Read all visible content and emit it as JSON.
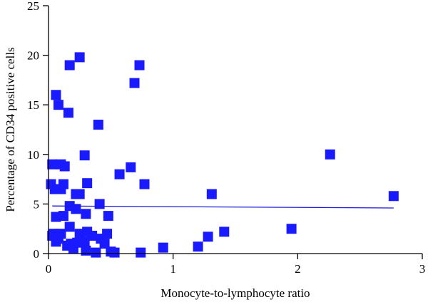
{
  "chart_data": {
    "type": "scatter",
    "xlabel": "Monocyte-to-lymphocyte ratio",
    "ylabel": "Percentage of CD34 positive cells",
    "xlim": [
      0,
      3
    ],
    "ylim": [
      0,
      25
    ],
    "x_ticks": [
      0,
      1,
      2,
      3
    ],
    "y_ticks": [
      0,
      5,
      10,
      15,
      20,
      25
    ],
    "grid": false,
    "legend": "none",
    "marker_color": "#1a1aff",
    "line_color": "#1a1adc",
    "trendline": {
      "x": [
        0.03,
        2.77
      ],
      "y": [
        4.8,
        4.6
      ]
    },
    "series": [
      {
        "x": [
          0.06,
          0.08,
          0.16,
          0.25,
          0.17,
          0.4,
          0.69,
          0.73,
          0.03,
          0.1,
          0.13,
          0.29,
          0.57,
          0.66,
          2.26,
          0.02,
          0.05,
          0.12,
          0.1,
          0.22,
          0.31,
          0.25,
          0.77,
          1.31,
          2.77,
          0.17,
          0.22,
          0.41,
          0.06,
          0.12,
          0.3,
          0.48,
          0.04,
          0.1,
          0.17,
          0.25,
          0.31,
          0.42,
          0.47,
          0.06,
          0.18,
          0.23,
          0.35,
          0.29,
          0.03,
          0.08,
          0.15,
          0.2,
          0.3,
          0.45,
          0.5,
          0.53,
          0.38,
          0.74,
          0.92,
          1.2,
          1.28,
          1.41,
          1.95
        ],
        "y": [
          16.0,
          15.0,
          14.2,
          19.8,
          19.0,
          13.0,
          17.2,
          19.0,
          9.0,
          9.0,
          8.8,
          9.9,
          8.0,
          8.7,
          10.0,
          7.0,
          6.5,
          7.0,
          6.5,
          6.0,
          7.1,
          6.0,
          7.0,
          6.0,
          5.8,
          4.8,
          4.5,
          5.0,
          3.7,
          3.8,
          4.0,
          3.8,
          2.0,
          2.0,
          2.7,
          2.0,
          2.2,
          1.5,
          2.0,
          1.2,
          1.0,
          1.1,
          1.8,
          1.2,
          1.8,
          1.5,
          0.8,
          0.5,
          0.3,
          1.0,
          0.2,
          0.1,
          0.1,
          0.1,
          0.6,
          0.7,
          1.7,
          2.2,
          2.5
        ]
      }
    ]
  }
}
